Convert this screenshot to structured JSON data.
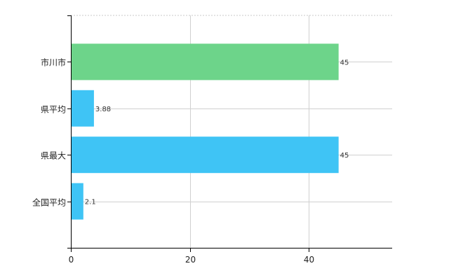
{
  "chart_data": {
    "type": "bar",
    "orientation": "horizontal",
    "categories": [
      "市川市",
      "県平均",
      "県最大",
      "全国平均"
    ],
    "values": [
      45,
      3.88,
      45,
      2.1
    ],
    "value_labels": [
      "45",
      "3.88",
      "45",
      "2.1"
    ],
    "bar_colors": [
      "#6dd48a",
      "#3fc4f5",
      "#3fc4f5",
      "#3fc4f5"
    ],
    "xlim": [
      0,
      54
    ],
    "x_ticks": [
      0,
      20,
      40
    ],
    "x_tick_labels": [
      "0",
      "20",
      "40"
    ],
    "grid": true,
    "title": "",
    "xlabel": "",
    "ylabel": ""
  }
}
